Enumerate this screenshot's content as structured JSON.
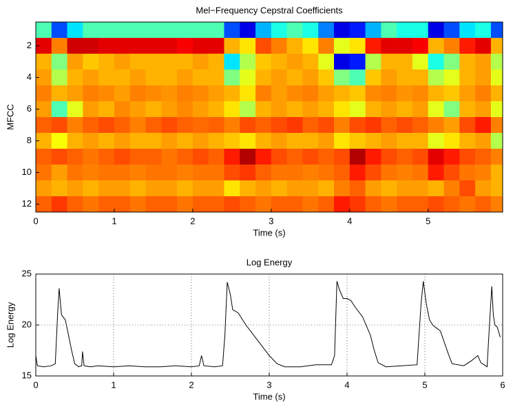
{
  "chart_data": [
    {
      "type": "heatmap",
      "title": "Mel−Frequency Cepstral Coefficients",
      "x_label": "Time (s)",
      "y_label": "MFCC",
      "colormap": "jet",
      "zlim": [
        0,
        1
      ],
      "y_reversed": true,
      "x": [
        0,
        0.2,
        0.4,
        0.6,
        0.8,
        1.0,
        1.2,
        1.4,
        1.6,
        1.8,
        2.0,
        2.2,
        2.4,
        2.6,
        2.8,
        3.0,
        3.2,
        3.4,
        3.6,
        3.8,
        4.0,
        4.2,
        4.4,
        4.6,
        4.8,
        5.0,
        5.2,
        5.4,
        5.6,
        5.8
      ],
      "y": [
        1,
        2,
        3,
        4,
        5,
        6,
        7,
        8,
        9,
        10,
        11,
        12
      ],
      "xlim": [
        0,
        5.95
      ],
      "xticks": [
        0,
        1,
        2,
        3,
        4,
        5
      ],
      "ylim": [
        0.5,
        12.5
      ],
      "yticks": [
        2,
        4,
        6,
        8,
        10,
        12
      ],
      "z": [
        [
          0.45,
          0.2,
          0.35,
          0.45,
          0.45,
          0.45,
          0.45,
          0.45,
          0.45,
          0.45,
          0.45,
          0.45,
          0.2,
          0.1,
          0.3,
          0.4,
          0.45,
          0.4,
          0.25,
          0.1,
          0.15,
          0.3,
          0.45,
          0.4,
          0.4,
          0.1,
          0.2,
          0.35,
          0.4,
          0.2
        ],
        [
          0.9,
          0.75,
          0.92,
          0.92,
          0.9,
          0.9,
          0.9,
          0.9,
          0.9,
          0.88,
          0.9,
          0.9,
          0.7,
          0.65,
          0.8,
          0.75,
          0.7,
          0.65,
          0.75,
          0.6,
          0.65,
          0.85,
          0.9,
          0.9,
          0.88,
          0.7,
          0.75,
          0.85,
          0.9,
          0.7
        ],
        [
          0.7,
          0.5,
          0.72,
          0.68,
          0.7,
          0.72,
          0.7,
          0.7,
          0.7,
          0.7,
          0.72,
          0.7,
          0.35,
          0.55,
          0.68,
          0.7,
          0.72,
          0.7,
          0.6,
          0.1,
          0.15,
          0.55,
          0.7,
          0.7,
          0.6,
          0.4,
          0.5,
          0.7,
          0.72,
          0.55
        ],
        [
          0.72,
          0.55,
          0.7,
          0.72,
          0.7,
          0.7,
          0.72,
          0.7,
          0.7,
          0.72,
          0.7,
          0.7,
          0.5,
          0.6,
          0.7,
          0.72,
          0.7,
          0.72,
          0.68,
          0.5,
          0.45,
          0.68,
          0.72,
          0.7,
          0.7,
          0.55,
          0.6,
          0.7,
          0.72,
          0.6
        ],
        [
          0.75,
          0.7,
          0.72,
          0.75,
          0.74,
          0.72,
          0.75,
          0.74,
          0.73,
          0.75,
          0.74,
          0.72,
          0.7,
          0.65,
          0.75,
          0.72,
          0.74,
          0.75,
          0.72,
          0.7,
          0.68,
          0.74,
          0.75,
          0.73,
          0.74,
          0.7,
          0.68,
          0.72,
          0.75,
          0.7
        ],
        [
          0.72,
          0.45,
          0.6,
          0.72,
          0.7,
          0.74,
          0.72,
          0.7,
          0.72,
          0.74,
          0.72,
          0.7,
          0.65,
          0.55,
          0.7,
          0.72,
          0.7,
          0.72,
          0.7,
          0.65,
          0.6,
          0.7,
          0.72,
          0.7,
          0.72,
          0.6,
          0.5,
          0.7,
          0.72,
          0.6
        ],
        [
          0.78,
          0.8,
          0.75,
          0.78,
          0.8,
          0.78,
          0.75,
          0.78,
          0.8,
          0.78,
          0.77,
          0.78,
          0.75,
          0.8,
          0.78,
          0.8,
          0.82,
          0.78,
          0.8,
          0.75,
          0.8,
          0.82,
          0.78,
          0.8,
          0.78,
          0.75,
          0.72,
          0.8,
          0.85,
          0.75
        ],
        [
          0.7,
          0.62,
          0.7,
          0.72,
          0.7,
          0.72,
          0.7,
          0.7,
          0.72,
          0.7,
          0.72,
          0.7,
          0.68,
          0.65,
          0.7,
          0.72,
          0.7,
          0.7,
          0.72,
          0.65,
          0.68,
          0.7,
          0.72,
          0.7,
          0.7,
          0.6,
          0.65,
          0.7,
          0.72,
          0.55
        ],
        [
          0.78,
          0.8,
          0.78,
          0.76,
          0.78,
          0.8,
          0.78,
          0.78,
          0.76,
          0.78,
          0.8,
          0.78,
          0.85,
          0.95,
          0.85,
          0.8,
          0.78,
          0.8,
          0.78,
          0.8,
          0.95,
          0.85,
          0.8,
          0.78,
          0.8,
          0.9,
          0.85,
          0.8,
          0.78,
          0.75
        ],
        [
          0.76,
          0.72,
          0.76,
          0.75,
          0.76,
          0.76,
          0.75,
          0.76,
          0.76,
          0.75,
          0.76,
          0.76,
          0.8,
          0.82,
          0.78,
          0.76,
          0.76,
          0.75,
          0.76,
          0.78,
          0.85,
          0.8,
          0.76,
          0.75,
          0.76,
          0.85,
          0.8,
          0.76,
          0.75,
          0.7
        ],
        [
          0.72,
          0.7,
          0.72,
          0.7,
          0.72,
          0.72,
          0.7,
          0.72,
          0.72,
          0.7,
          0.72,
          0.72,
          0.65,
          0.7,
          0.72,
          0.7,
          0.72,
          0.72,
          0.7,
          0.75,
          0.78,
          0.72,
          0.7,
          0.72,
          0.72,
          0.7,
          0.75,
          0.8,
          0.72,
          0.7
        ],
        [
          0.78,
          0.82,
          0.78,
          0.76,
          0.78,
          0.78,
          0.76,
          0.78,
          0.78,
          0.76,
          0.78,
          0.78,
          0.8,
          0.78,
          0.76,
          0.78,
          0.78,
          0.76,
          0.78,
          0.85,
          0.82,
          0.78,
          0.76,
          0.78,
          0.78,
          0.8,
          0.78,
          0.76,
          0.78,
          0.75
        ]
      ]
    },
    {
      "type": "line",
      "title": "Log Energy",
      "x_label": "Time (s)",
      "y_label": "Log Energy",
      "color": "#000000",
      "grid": true,
      "xlim": [
        0,
        6
      ],
      "xticks": [
        0,
        1,
        2,
        3,
        4,
        5,
        6
      ],
      "ylim": [
        15,
        25
      ],
      "yticks": [
        15,
        20,
        25
      ],
      "x": [
        0,
        0.02,
        0.1,
        0.2,
        0.25,
        0.28,
        0.3,
        0.33,
        0.35,
        0.38,
        0.42,
        0.46,
        0.5,
        0.55,
        0.59,
        0.6,
        0.62,
        0.7,
        0.8,
        1,
        1.2,
        1.4,
        1.6,
        1.8,
        2.0,
        2.1,
        2.13,
        2.16,
        2.3,
        2.4,
        2.43,
        2.46,
        2.5,
        2.53,
        2.6,
        2.7,
        2.8,
        2.9,
        3.0,
        3.1,
        3.2,
        3.4,
        3.6,
        3.8,
        3.84,
        3.87,
        3.9,
        3.95,
        4.0,
        4.05,
        4.1,
        4.2,
        4.3,
        4.35,
        4.4,
        4.5,
        4.7,
        4.9,
        4.95,
        4.98,
        5.02,
        5.06,
        5.1,
        5.2,
        5.3,
        5.35,
        5.5,
        5.6,
        5.68,
        5.72,
        5.8,
        5.83,
        5.86,
        5.88,
        5.9,
        5.93,
        5.97
      ],
      "values": [
        17,
        16,
        15.9,
        16,
        16.2,
        21,
        23.6,
        21,
        20.8,
        20.5,
        19,
        17.5,
        16.2,
        15.9,
        16,
        17.4,
        16,
        15.9,
        16,
        15.9,
        16,
        15.9,
        15.9,
        16,
        15.9,
        16,
        17,
        16,
        15.9,
        16,
        19,
        24.2,
        23,
        21.5,
        21.2,
        20,
        19,
        18,
        17,
        16.2,
        15.9,
        15.9,
        16.1,
        16.1,
        17,
        24.3,
        23.5,
        22.6,
        22.6,
        22.4,
        21.8,
        20.8,
        19,
        17.5,
        16.3,
        15.9,
        16,
        16.1,
        22,
        24.3,
        22,
        20.5,
        20,
        19.4,
        17.2,
        16.2,
        16,
        16.5,
        17,
        16.3,
        15.9,
        20,
        23.8,
        21,
        20,
        19.8,
        18.8
      ]
    }
  ]
}
